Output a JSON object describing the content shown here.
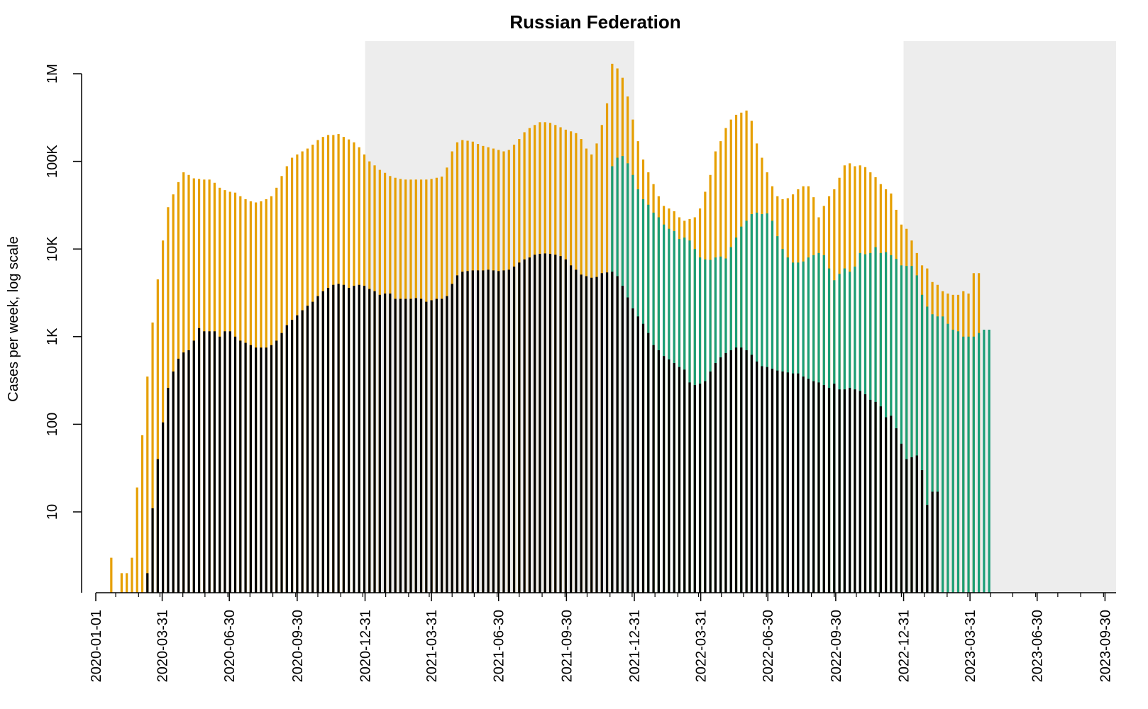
{
  "colors": {
    "background": "#ffffff",
    "shade": "#ededed",
    "total": "#e69f00",
    "secondary": "#1a9e77",
    "deaths": "#000000",
    "axis": "#000000"
  },
  "chart_data": {
    "type": "bar",
    "title": "Russian Federation",
    "xlabel": "",
    "ylabel": "Cases per week, log scale",
    "y_scale": "log",
    "ylim": [
      1,
      1000000
    ],
    "xlim": [
      "2020-01-01",
      "2023-10-15"
    ],
    "grid": false,
    "legend": "none",
    "x_tick_labels": [
      "2020-01-01",
      "2020-03-31",
      "2020-06-30",
      "2020-09-30",
      "2020-12-31",
      "2021-03-31",
      "2021-06-30",
      "2021-09-30",
      "2021-12-31",
      "2022-03-31",
      "2022-06-30",
      "2022-09-30",
      "2022-12-31",
      "2023-03-31",
      "2023-06-30",
      "2023-09-30"
    ],
    "y_ticks": [
      {
        "value": 10,
        "label": "10"
      },
      {
        "value": 100,
        "label": "100"
      },
      {
        "value": 1000,
        "label": "1K"
      },
      {
        "value": 10000,
        "label": "10K"
      },
      {
        "value": 100000,
        "label": "100K"
      },
      {
        "value": 1000000,
        "label": "1M"
      }
    ],
    "shaded_periods": [
      [
        "2020-12-31",
        "2021-12-31"
      ],
      [
        "2022-12-31",
        "2023-10-15"
      ]
    ],
    "week_start": "2020-01-22",
    "week_interval_days": 7,
    "series": [
      {
        "key": "total",
        "values": [
          3,
          0,
          2,
          2,
          3,
          19,
          75,
          350,
          1450,
          4500,
          12500,
          30000,
          42000,
          58000,
          75000,
          70000,
          64000,
          63000,
          62000,
          62000,
          57000,
          50000,
          47000,
          45000,
          44000,
          40000,
          37000,
          35000,
          34000,
          35000,
          37000,
          40000,
          50000,
          68000,
          88000,
          110000,
          120000,
          130000,
          140000,
          155000,
          175000,
          190000,
          200000,
          200000,
          205000,
          190000,
          178000,
          165000,
          145000,
          120000,
          100000,
          90000,
          80000,
          74000,
          68000,
          65000,
          63000,
          62000,
          62000,
          62000,
          62000,
          62000,
          63000,
          65000,
          67000,
          85000,
          130000,
          165000,
          175000,
          172000,
          168000,
          158000,
          150000,
          145000,
          140000,
          135000,
          130000,
          135000,
          155000,
          180000,
          215000,
          240000,
          260000,
          280000,
          280000,
          275000,
          260000,
          245000,
          230000,
          220000,
          210000,
          180000,
          140000,
          120000,
          160000,
          260000,
          460000,
          1300000,
          1150000,
          900000,
          550000,
          300000,
          170000,
          105000,
          75000,
          55000,
          40000,
          31000,
          29000,
          27000,
          23000,
          21000,
          22000,
          23000,
          29000,
          45000,
          70000,
          130000,
          170000,
          240000,
          300000,
          340000,
          360000,
          380000,
          290000,
          160000,
          110000,
          75000,
          52000,
          40000,
          37000,
          38000,
          42000,
          48000,
          52000,
          52000,
          39000,
          23000,
          31000,
          40000,
          48000,
          65000,
          90000,
          95000,
          88000,
          90000,
          86000,
          75000,
          66000,
          55000,
          48000,
          43000,
          28000,
          19000,
          17000,
          12500,
          9000,
          6500,
          6000,
          4200,
          3900,
          3300,
          3100,
          3000,
          3000,
          3300,
          3100,
          5300,
          5300
        ]
      },
      {
        "key": "secondary",
        "values": [
          0,
          0,
          0,
          0,
          0,
          0,
          0,
          0,
          0,
          0,
          0,
          0,
          0,
          0,
          0,
          0,
          0,
          0,
          0,
          0,
          0,
          0,
          0,
          0,
          0,
          0,
          0,
          0,
          0,
          0,
          0,
          0,
          0,
          0,
          0,
          0,
          0,
          0,
          0,
          0,
          0,
          0,
          0,
          0,
          0,
          0,
          0,
          0,
          0,
          0,
          0,
          0,
          0,
          0,
          0,
          0,
          0,
          0,
          0,
          0,
          0,
          0,
          0,
          0,
          0,
          0,
          0,
          0,
          0,
          0,
          0,
          0,
          0,
          0,
          0,
          0,
          0,
          0,
          0,
          0,
          0,
          0,
          0,
          0,
          0,
          0,
          0,
          0,
          0,
          0,
          0,
          0,
          0,
          0,
          0,
          0,
          0,
          88000,
          110000,
          115000,
          95000,
          70000,
          48000,
          37000,
          32000,
          26000,
          23000,
          19000,
          17000,
          16000,
          13000,
          13500,
          12500,
          10000,
          8000,
          7600,
          7500,
          8000,
          8200,
          7800,
          10500,
          13500,
          18000,
          21000,
          25000,
          26000,
          25000,
          25500,
          21000,
          14000,
          10000,
          8000,
          7000,
          7000,
          7200,
          8000,
          8500,
          9000,
          8500,
          6000,
          4400,
          5200,
          6000,
          5500,
          6300,
          9000,
          8700,
          9000,
          10500,
          9000,
          9200,
          8500,
          7700,
          6500,
          6400,
          6400,
          5000,
          3000,
          2200,
          1800,
          1700,
          1700,
          1400,
          1200,
          1150,
          1000,
          1000,
          1000,
          1100,
          1200,
          1200
        ]
      },
      {
        "key": "deaths",
        "values": [
          0,
          0,
          0,
          0,
          0,
          0,
          0,
          2,
          11,
          40,
          105,
          260,
          400,
          560,
          660,
          700,
          900,
          1250,
          1150,
          1150,
          1150,
          1000,
          1150,
          1150,
          1000,
          900,
          850,
          800,
          750,
          750,
          750,
          800,
          900,
          1100,
          1350,
          1550,
          1750,
          2000,
          2250,
          2500,
          2900,
          3300,
          3600,
          3900,
          4000,
          3900,
          3600,
          3800,
          3900,
          3800,
          3500,
          3300,
          3000,
          3100,
          3100,
          2700,
          2700,
          2700,
          2700,
          2750,
          2700,
          2500,
          2600,
          2700,
          2700,
          2900,
          4000,
          5000,
          5500,
          5600,
          5700,
          5700,
          5700,
          5800,
          5700,
          5600,
          5700,
          5800,
          6300,
          7000,
          7600,
          8000,
          8600,
          8800,
          8900,
          8800,
          8600,
          8300,
          7600,
          6500,
          5800,
          5100,
          4900,
          4700,
          4800,
          5300,
          5400,
          5500,
          4900,
          3800,
          2800,
          2100,
          1700,
          1400,
          1100,
          800,
          700,
          600,
          550,
          500,
          450,
          420,
          300,
          280,
          290,
          310,
          400,
          500,
          580,
          650,
          700,
          750,
          750,
          700,
          620,
          520,
          460,
          450,
          430,
          410,
          400,
          390,
          380,
          380,
          350,
          330,
          310,
          300,
          280,
          260,
          290,
          250,
          250,
          260,
          250,
          240,
          220,
          190,
          180,
          160,
          120,
          125,
          90,
          60,
          40,
          42,
          44,
          30,
          12,
          17,
          17
        ]
      }
    ]
  }
}
